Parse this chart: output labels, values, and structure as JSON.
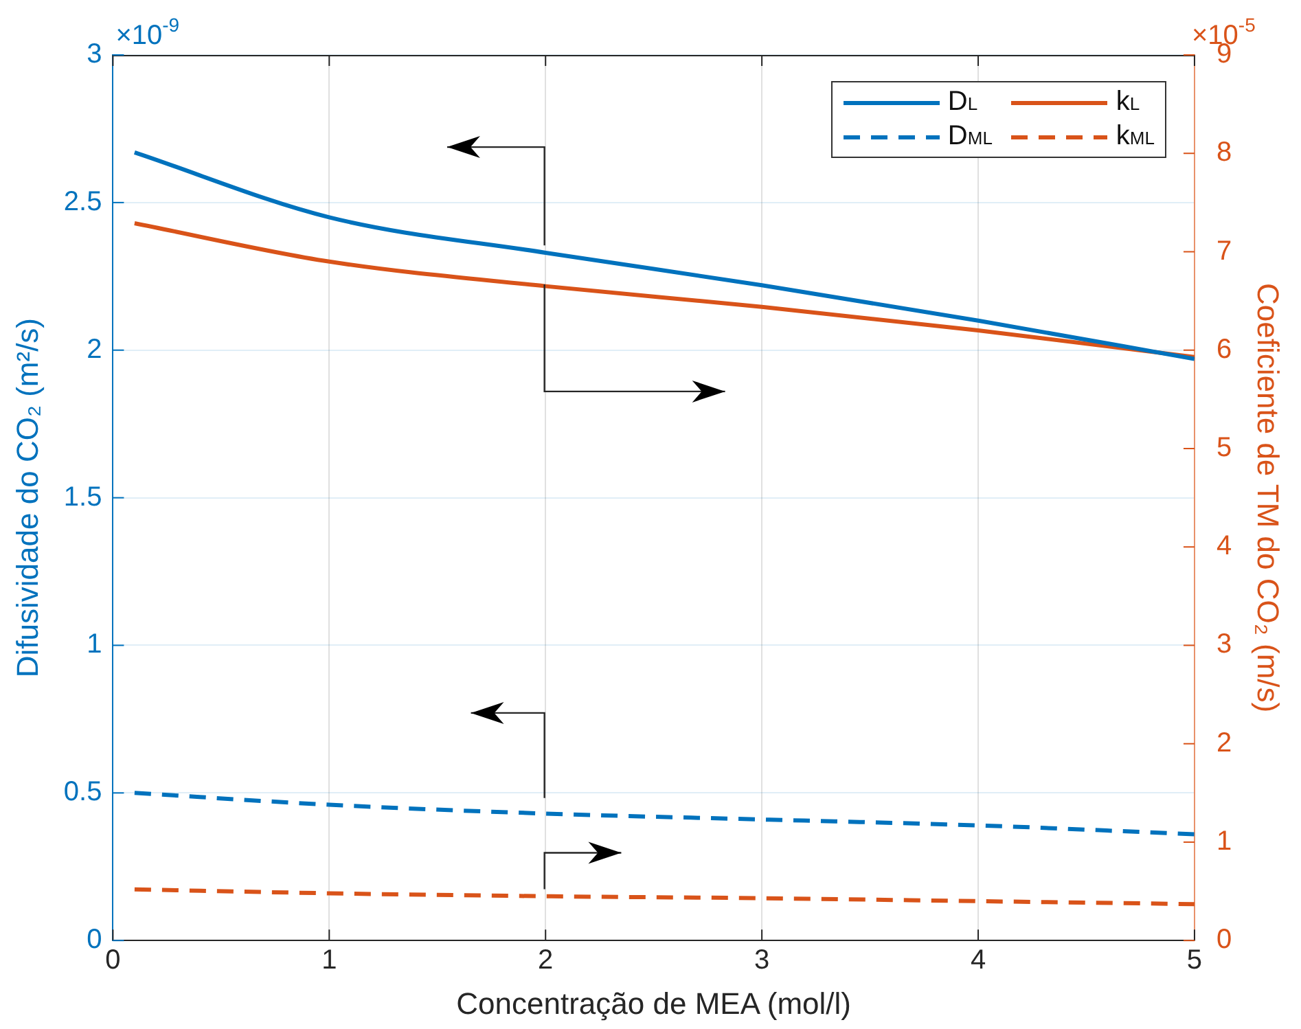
{
  "chart_data": {
    "type": "line",
    "xlabel": "Concentração de MEA (mol/l)",
    "ylabel": "Difusividade do CO₂ (m²/s)",
    "y2label": "Coeficiente de TM do CO₂ (m/s)",
    "x": [
      0.1,
      1,
      2,
      3,
      4,
      5
    ],
    "xlim": [
      0,
      5
    ],
    "xticks": [
      0,
      1,
      2,
      3,
      4,
      5
    ],
    "ylim": [
      0,
      3
    ],
    "yticks": [
      0,
      0.5,
      1,
      1.5,
      2,
      2.5,
      3
    ],
    "y2lim": [
      0,
      9
    ],
    "y2ticks": [
      0,
      1,
      2,
      3,
      4,
      5,
      6,
      7,
      8,
      9
    ],
    "annotations": [
      "×10$^{-9}$",
      "×10$^{-5}$"
    ],
    "grid": true,
    "legend": "top right",
    "marker": "none",
    "series": [
      {
        "name": "D$_{L}$",
        "color": "#0072bd",
        "line_style": "solid",
        "values": [
          2.67,
          2.45,
          2.33,
          2.22,
          2.1,
          1.97
        ]
      },
      {
        "name": "D$_{ML}$",
        "color": "#0072bd",
        "line_style": "dashed",
        "values": [
          0.5,
          0.46,
          0.43,
          0.41,
          0.39,
          0.36
        ]
      },
      {
        "name": "k$_{L}$",
        "color": "#d95319",
        "line_style": "solid",
        "axis": "y2",
        "values": [
          7.29,
          6.9,
          6.65,
          6.44,
          6.2,
          5.93
        ]
      },
      {
        "name": "k$_{ML}$",
        "color": "#d95319",
        "line_style": "dashed",
        "axis": "y2",
        "values": [
          0.52,
          0.48,
          0.45,
          0.43,
          0.4,
          0.37
        ]
      }
    ]
  }
}
